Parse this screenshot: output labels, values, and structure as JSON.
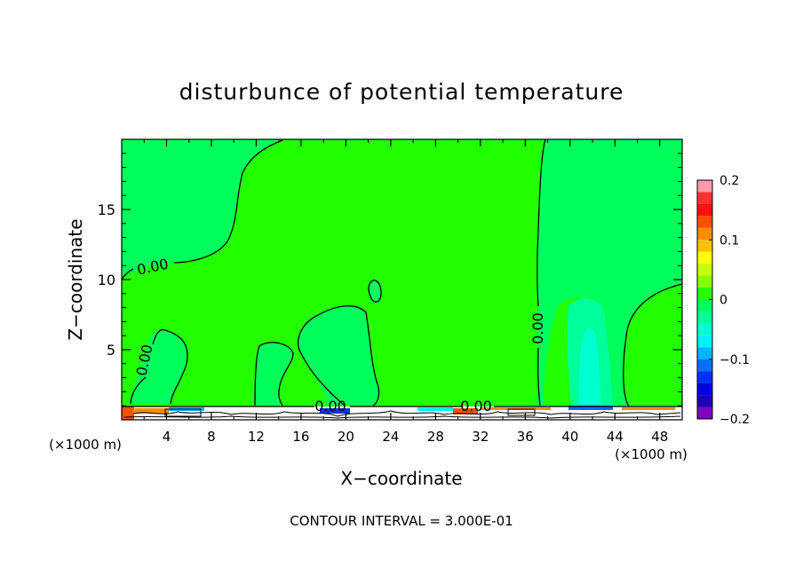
{
  "chart_data": {
    "type": "heatmap",
    "title": "disturbunce of potential temperature",
    "xlabel": "X−coordinate",
    "ylabel": "Z−coordinate",
    "x_unit_left": "(×1000 m)",
    "x_unit_right": "(×1000 m)",
    "xlim": [
      0,
      50
    ],
    "ylim": [
      0,
      20
    ],
    "x_ticks": [
      4,
      8,
      12,
      16,
      20,
      24,
      28,
      32,
      36,
      40,
      44,
      48
    ],
    "y_ticks": [
      5,
      10,
      15
    ],
    "colorbar": {
      "min": -0.2,
      "max": 0.2,
      "ticks": [
        0.2,
        0.1,
        0,
        -0.1,
        -0.2
      ],
      "tick_labels": [
        "0.2",
        "0.1",
        "0",
        "−0.1",
        "−0.2"
      ],
      "levels": [
        {
          "value": 0.19,
          "color": "#ff9aa8"
        },
        {
          "value": 0.17,
          "color": "#ff3030"
        },
        {
          "value": 0.15,
          "color": "#ff1010"
        },
        {
          "value": 0.13,
          "color": "#ff5000"
        },
        {
          "value": 0.11,
          "color": "#ff8c00"
        },
        {
          "value": 0.09,
          "color": "#ffc000"
        },
        {
          "value": 0.07,
          "color": "#ffff00"
        },
        {
          "value": 0.05,
          "color": "#c8ff00"
        },
        {
          "value": 0.03,
          "color": "#88ff00"
        },
        {
          "value": 0.01,
          "color": "#22ff00"
        },
        {
          "value": -0.01,
          "color": "#00ff5a"
        },
        {
          "value": -0.03,
          "color": "#00ff9a"
        },
        {
          "value": -0.05,
          "color": "#00ffd0"
        },
        {
          "value": -0.07,
          "color": "#00f0ff"
        },
        {
          "value": -0.09,
          "color": "#00b4ff"
        },
        {
          "value": -0.11,
          "color": "#0070ff"
        },
        {
          "value": -0.13,
          "color": "#0030ff"
        },
        {
          "value": -0.15,
          "color": "#0000e0"
        },
        {
          "value": -0.17,
          "color": "#1a00b0"
        },
        {
          "value": -0.19,
          "color": "#8000c0"
        }
      ]
    },
    "contour_label": "0.00",
    "background_color": "#22ff00",
    "grid": false
  },
  "footer": {
    "contour_interval": "CONTOUR INTERVAL = 3.000E-01"
  }
}
